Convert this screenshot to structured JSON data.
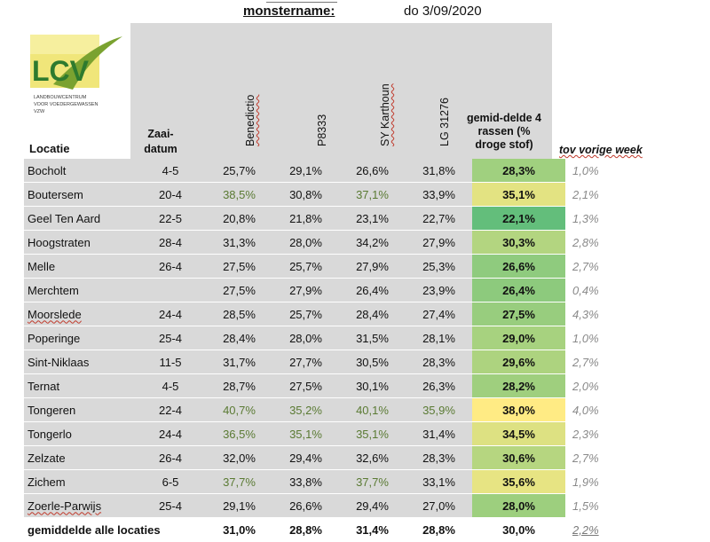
{
  "header": {
    "label": "monstername:",
    "date": "do 3/09/2020",
    "logo": {
      "letters": "LCV",
      "line1": "LANDBOUWCENTRUM",
      "line2": "VOOR VOEDERGEWASSEN",
      "line3": "VZW"
    },
    "col_locatie": "Locatie",
    "col_zaai_1": "Zaai-",
    "col_zaai_2": "datum",
    "varieties": [
      "Benedictio",
      "P8333",
      "SY Karthoun",
      "LG 31276"
    ],
    "col_gem_1": "gemid-delde 4",
    "col_gem_2": "rassen (%",
    "col_gem_3": "droge stof)",
    "col_tov": "tov vorige week"
  },
  "colors": {
    "header_grey": "#d9d9d9",
    "scale_low": "#63be7b",
    "scale_high": "#ffeb84",
    "highlight_text": "#5a7a33"
  },
  "rows": [
    {
      "loc": "Bocholt",
      "zaai": "4-5",
      "v": [
        "25,7%",
        "29,1%",
        "26,6%",
        "31,8%"
      ],
      "hl": [
        false,
        false,
        false,
        false
      ],
      "avg": "28,3%",
      "avg_num": 28.3,
      "tov": "1,0%"
    },
    {
      "loc": "Boutersem",
      "zaai": "20-4",
      "v": [
        "38,5%",
        "30,8%",
        "37,1%",
        "33,9%"
      ],
      "hl": [
        true,
        false,
        true,
        false
      ],
      "avg": "35,1%",
      "avg_num": 35.1,
      "tov": "2,1%"
    },
    {
      "loc": "Geel Ten Aard",
      "zaai": "22-5",
      "v": [
        "20,8%",
        "21,8%",
        "23,1%",
        "22,7%"
      ],
      "hl": [
        false,
        false,
        false,
        false
      ],
      "avg": "22,1%",
      "avg_num": 22.1,
      "tov": "1,3%"
    },
    {
      "loc": "Hoogstraten",
      "zaai": "28-4",
      "v": [
        "31,3%",
        "28,0%",
        "34,2%",
        "27,9%"
      ],
      "hl": [
        false,
        false,
        false,
        false
      ],
      "avg": "30,3%",
      "avg_num": 30.3,
      "tov": "2,8%"
    },
    {
      "loc": "Melle",
      "zaai": "26-4",
      "v": [
        "27,5%",
        "25,7%",
        "27,9%",
        "25,3%"
      ],
      "hl": [
        false,
        false,
        false,
        false
      ],
      "avg": "26,6%",
      "avg_num": 26.6,
      "tov": "2,7%"
    },
    {
      "loc": "Merchtem",
      "zaai": "",
      "v": [
        "27,5%",
        "27,9%",
        "26,4%",
        "23,9%"
      ],
      "hl": [
        false,
        false,
        false,
        false
      ],
      "avg": "26,4%",
      "avg_num": 26.4,
      "tov": "0,4%"
    },
    {
      "loc": "Moorslede",
      "zaai": "24-4",
      "v": [
        "28,5%",
        "25,7%",
        "28,4%",
        "27,4%"
      ],
      "hl": [
        false,
        false,
        false,
        false
      ],
      "avg": "27,5%",
      "avg_num": 27.5,
      "tov": "4,3%",
      "wavy": true
    },
    {
      "loc": "Poperinge",
      "zaai": "25-4",
      "v": [
        "28,4%",
        "28,0%",
        "31,5%",
        "28,1%"
      ],
      "hl": [
        false,
        false,
        false,
        false
      ],
      "avg": "29,0%",
      "avg_num": 29.0,
      "tov": "1,0%"
    },
    {
      "loc": "Sint-Niklaas",
      "zaai": "11-5",
      "v": [
        "31,7%",
        "27,7%",
        "30,5%",
        "28,3%"
      ],
      "hl": [
        false,
        false,
        false,
        false
      ],
      "avg": "29,6%",
      "avg_num": 29.6,
      "tov": "2,7%"
    },
    {
      "loc": "Ternat",
      "zaai": "4-5",
      "v": [
        "28,7%",
        "27,5%",
        "30,1%",
        "26,3%"
      ],
      "hl": [
        false,
        false,
        false,
        false
      ],
      "avg": "28,2%",
      "avg_num": 28.2,
      "tov": "2,0%"
    },
    {
      "loc": "Tongeren",
      "zaai": "22-4",
      "v": [
        "40,7%",
        "35,2%",
        "40,1%",
        "35,9%"
      ],
      "hl": [
        true,
        true,
        true,
        true
      ],
      "avg": "38,0%",
      "avg_num": 38.0,
      "tov": "4,0%"
    },
    {
      "loc": "Tongerlo",
      "zaai": "24-4",
      "v": [
        "36,5%",
        "35,1%",
        "35,1%",
        "31,4%"
      ],
      "hl": [
        true,
        true,
        true,
        false
      ],
      "avg": "34,5%",
      "avg_num": 34.5,
      "tov": "2,3%"
    },
    {
      "loc": "Zelzate",
      "zaai": "26-4",
      "v": [
        "32,0%",
        "29,4%",
        "32,6%",
        "28,3%"
      ],
      "hl": [
        false,
        false,
        false,
        false
      ],
      "avg": "30,6%",
      "avg_num": 30.6,
      "tov": "2,7%"
    },
    {
      "loc": "Zichem",
      "zaai": "6-5",
      "v": [
        "37,7%",
        "33,8%",
        "37,7%",
        "33,1%"
      ],
      "hl": [
        true,
        false,
        true,
        false
      ],
      "avg": "35,6%",
      "avg_num": 35.6,
      "tov": "1,9%"
    },
    {
      "loc": "Zoerle-Parwijs",
      "zaai": "25-4",
      "v": [
        "29,1%",
        "26,6%",
        "29,4%",
        "27,0%"
      ],
      "hl": [
        false,
        false,
        false,
        false
      ],
      "avg": "28,0%",
      "avg_num": 28.0,
      "tov": "1,5%",
      "wavy": true
    }
  ],
  "summary": {
    "label": "gemiddelde alle locaties",
    "v": [
      "31,0%",
      "28,8%",
      "31,4%",
      "28,8%"
    ],
    "avg": "30,0%",
    "tov": "2,2%"
  }
}
